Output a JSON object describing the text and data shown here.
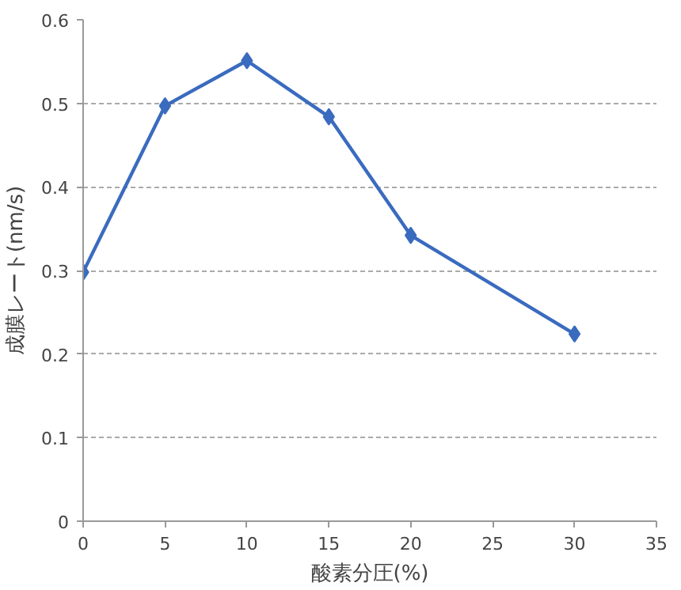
{
  "chart_data": {
    "type": "line",
    "xlabel": "酸素分圧(%)",
    "ylabel": "成膜レート(nm/s)",
    "x": [
      0,
      5,
      10,
      15,
      20,
      30
    ],
    "series": [
      {
        "color": "#3a6bbf",
        "values": [
          0.298,
          0.497,
          0.551,
          0.484,
          0.342,
          0.224
        ]
      }
    ],
    "xlim": [
      0,
      35
    ],
    "xticks": [
      0,
      5,
      10,
      15,
      20,
      25,
      30,
      35
    ],
    "ylim": [
      0,
      0.6
    ],
    "yticks": [
      0,
      0.1,
      0.2,
      0.3,
      0.4,
      0.5,
      0.6
    ],
    "grid": "y",
    "marker": "diamond",
    "line_style": "solid"
  }
}
